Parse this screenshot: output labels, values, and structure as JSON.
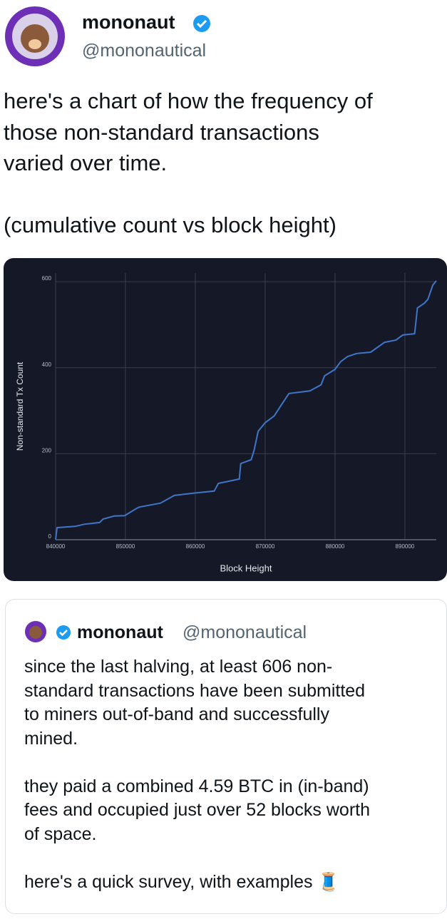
{
  "tweet": {
    "name": "mononaut",
    "handle": "@mononautical",
    "text_lines": [
      "here's a chart of how the frequency of",
      "those non-standard transactions",
      "varied over time.",
      "",
      "(cumulative count vs block height)"
    ]
  },
  "chart_data": {
    "type": "line",
    "x_label": "Block Height",
    "y_label": "Non-standard Tx Count",
    "color": "#3f76c9",
    "x": [
      840000,
      840200,
      842800,
      844100,
      846300,
      846800,
      848400,
      849900,
      851600,
      852000,
      855000,
      857000,
      859600,
      862700,
      863300,
      866300,
      866500,
      868000,
      868400,
      869000,
      870000,
      871300,
      872300,
      873400,
      876400,
      878000,
      878500,
      880000,
      880800,
      881800,
      883100,
      885100,
      887100,
      888700,
      889700,
      891400,
      891800,
      892800,
      893300,
      894000,
      894500
    ],
    "values": [
      0,
      28,
      31,
      36,
      40,
      48,
      55,
      56,
      73,
      76,
      85,
      103,
      108,
      113,
      131,
      141,
      177,
      186,
      207,
      252,
      272,
      288,
      313,
      340,
      346,
      360,
      381,
      396,
      414,
      426,
      433,
      436,
      459,
      464,
      476,
      479,
      539,
      550,
      559,
      592,
      602
    ],
    "xlim": [
      840000,
      894500
    ],
    "ylim": [
      0,
      620
    ],
    "xticks": [
      840000,
      850000,
      860000,
      870000,
      880000,
      890000
    ],
    "yticks": [
      0,
      200,
      400,
      600
    ],
    "grid": true
  },
  "quote": {
    "name": "mononaut",
    "handle": "@mononautical",
    "text_lines": [
      "since the last halving, at least 606 non-",
      "standard transactions have been submitted",
      "to miners out-of-band and successfully",
      "mined.",
      "",
      "they paid a combined 4.59 BTC in (in-band)",
      "fees and occupied just over 52 blocks worth",
      "of space.",
      "",
      "here's a quick survey, with examples 🧵"
    ]
  }
}
